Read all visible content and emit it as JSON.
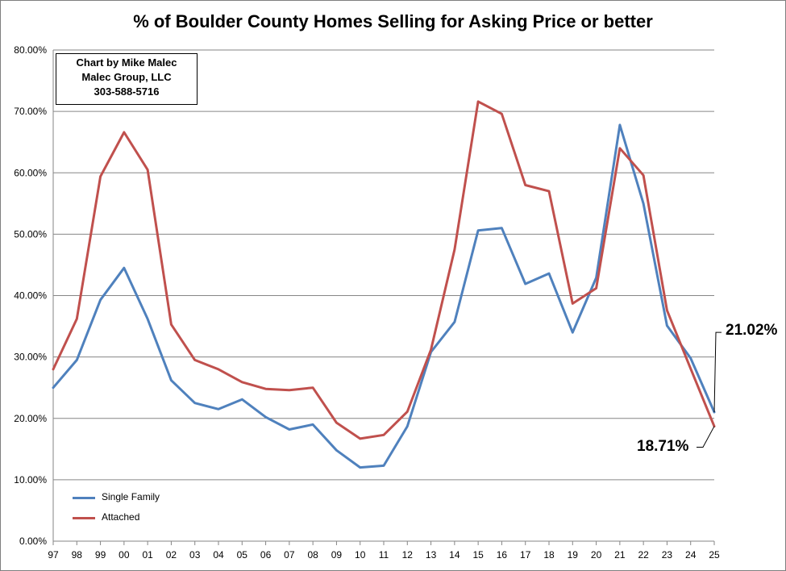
{
  "chart_data": {
    "type": "line",
    "title": "% of Boulder County Homes Selling for Asking Price or better",
    "categories": [
      "97",
      "98",
      "99",
      "00",
      "01",
      "02",
      "03",
      "04",
      "05",
      "06",
      "07",
      "08",
      "09",
      "10",
      "11",
      "12",
      "13",
      "14",
      "15",
      "16",
      "17",
      "18",
      "19",
      "20",
      "21",
      "22",
      "23",
      "24",
      "25"
    ],
    "ylim": [
      0,
      80
    ],
    "yticks": [
      "0.00%",
      "10.00%",
      "20.00%",
      "30.00%",
      "40.00%",
      "50.00%",
      "60.00%",
      "70.00%",
      "80.00%"
    ],
    "grid": true,
    "legend_position": "bottom-left",
    "series": [
      {
        "name": "Single Family",
        "color": "#4f81bd",
        "values": [
          25.0,
          29.5,
          39.3,
          44.5,
          36.2,
          26.2,
          22.5,
          21.5,
          23.1,
          20.2,
          18.2,
          19.0,
          14.8,
          12.0,
          12.3,
          18.7,
          30.8,
          35.7,
          50.6,
          51.0,
          41.9,
          43.6,
          34.0,
          42.9,
          67.8,
          55.0,
          35.1,
          29.8,
          21.02
        ]
      },
      {
        "name": "Attached",
        "color": "#c0504d",
        "values": [
          28.0,
          36.2,
          59.4,
          66.6,
          60.5,
          35.3,
          29.5,
          28.0,
          25.9,
          24.8,
          24.6,
          25.0,
          19.3,
          16.7,
          17.3,
          21.1,
          31.2,
          47.5,
          71.6,
          69.6,
          58.0,
          57.0,
          38.7,
          41.2,
          64.0,
          59.6,
          37.6,
          28.1,
          18.71
        ]
      }
    ],
    "annotations": [
      "21.02%",
      "18.71%"
    ]
  },
  "credit": {
    "line1": "Chart by Mike Malec",
    "line2": "Malec Group, LLC",
    "line3": "303-588-5716"
  }
}
